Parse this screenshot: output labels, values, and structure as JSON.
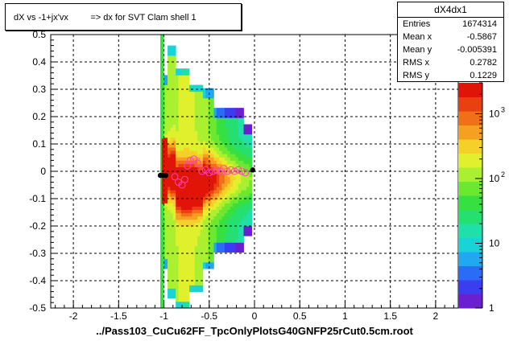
{
  "title": "dX vs -1+jx'vx         => dx for SVT Clam shell 1",
  "footer": "../Pass103_CuCu62FF_TpcOnlyPlotsG40GNFP25rCut0.5cm.root",
  "stats": {
    "name": "dX4dx1",
    "rows": [
      {
        "label": "Entries",
        "value": "1674314"
      },
      {
        "label": "Mean x",
        "value": "-0.5867"
      },
      {
        "label": "Mean y",
        "value": "-0.005391"
      },
      {
        "label": "RMS x",
        "value": "0.2782"
      },
      {
        "label": "RMS y",
        "value": "0.1229"
      }
    ]
  },
  "chart_data": {
    "type": "heatmap",
    "title": "dX vs -1+jx'vx         => dx for SVT Clam shell 1",
    "xlabel": "",
    "ylabel": "",
    "xlim": [
      -2.25,
      2.25
    ],
    "ylim": [
      -0.5,
      0.5
    ],
    "x_ticks": [
      "-2",
      "-1.5",
      "-1",
      "-0.5",
      "0",
      "0.5",
      "1",
      "1.5",
      "2"
    ],
    "y_ticks": [
      "-0.5",
      "-0.4",
      "-0.3",
      "-0.2",
      "-0.1",
      "0",
      "0.1",
      "0.2",
      "0.3",
      "0.4",
      "0.5"
    ],
    "grid": true,
    "colorbar": {
      "scale": "log",
      "range": [
        1,
        3000
      ],
      "tick_labels": [
        "1",
        "10",
        "10",
        "10"
      ],
      "exponents": [
        "",
        "",
        "2",
        "3"
      ]
    },
    "profile_points": [
      {
        "x": -0.88,
        "y": -0.02
      },
      {
        "x": -0.84,
        "y": -0.04
      },
      {
        "x": -0.8,
        "y": -0.05
      },
      {
        "x": -0.77,
        "y": -0.03
      },
      {
        "x": -0.74,
        "y": 0.02
      },
      {
        "x": -0.71,
        "y": 0.04
      },
      {
        "x": -0.67,
        "y": 0.045
      },
      {
        "x": -0.63,
        "y": 0.03
      },
      {
        "x": -0.58,
        "y": 0.0
      },
      {
        "x": -0.54,
        "y": 0.005
      },
      {
        "x": -0.5,
        "y": -0.005
      },
      {
        "x": -0.46,
        "y": 0.0
      },
      {
        "x": -0.42,
        "y": 0.005
      },
      {
        "x": -0.38,
        "y": 0.0
      },
      {
        "x": -0.34,
        "y": 0.01
      },
      {
        "x": -0.3,
        "y": 0.0
      },
      {
        "x": -0.26,
        "y": 0.005
      },
      {
        "x": -0.22,
        "y": 0.0
      },
      {
        "x": -0.18,
        "y": 0.005
      },
      {
        "x": -0.14,
        "y": 0.0
      },
      {
        "x": -0.1,
        "y": -0.005
      }
    ],
    "markers_black": [
      {
        "x": -1.04,
        "y": -0.015
      },
      {
        "x": -1.01,
        "y": -0.015
      },
      {
        "x": -0.98,
        "y": -0.015
      },
      {
        "x": -0.02,
        "y": 0.005
      }
    ]
  }
}
